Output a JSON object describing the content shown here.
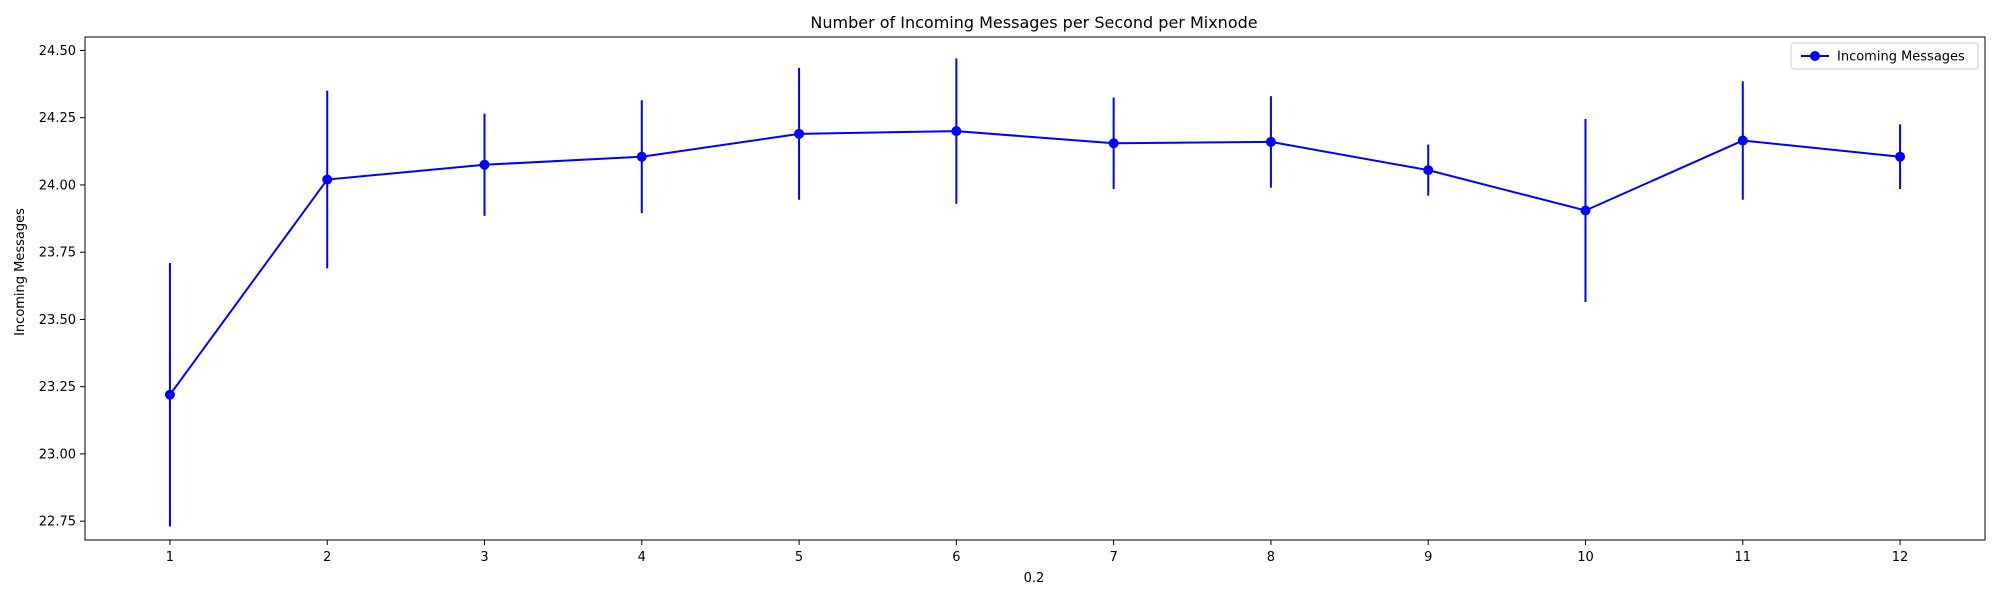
{
  "chart_data": {
    "type": "line",
    "title": "Number of Incoming Messages per Second per Mixnode",
    "xlabel": "0.2",
    "ylabel": "Incoming Messages",
    "x": [
      1,
      2,
      3,
      4,
      5,
      6,
      7,
      8,
      9,
      10,
      11,
      12
    ],
    "xticks": [
      "1",
      "2",
      "3",
      "4",
      "5",
      "6",
      "7",
      "8",
      "9",
      "10",
      "11",
      "12"
    ],
    "xlim": [
      0.46,
      12.54
    ],
    "ylim": [
      22.68,
      24.55
    ],
    "yticks": [
      22.75,
      23.0,
      23.25,
      23.5,
      23.75,
      24.0,
      24.25,
      24.5
    ],
    "ytick_labels": [
      "22.75",
      "23.00",
      "23.25",
      "23.50",
      "23.75",
      "24.00",
      "24.25",
      "24.50"
    ],
    "grid": false,
    "legend_position": "upper right",
    "series": [
      {
        "name": "Incoming Messages",
        "color": "#0000ff",
        "marker": "circle",
        "values": [
          23.22,
          24.02,
          24.075,
          24.105,
          24.19,
          24.2,
          24.155,
          24.16,
          24.055,
          23.905,
          24.165,
          24.105
        ],
        "error": [
          0.49,
          0.33,
          0.19,
          0.21,
          0.245,
          0.27,
          0.17,
          0.17,
          0.095,
          0.34,
          0.22,
          0.12
        ]
      }
    ]
  }
}
